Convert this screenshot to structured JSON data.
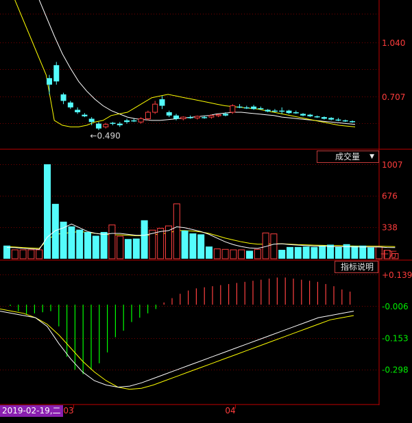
{
  "chart_data": [
    {
      "type": "candlestick",
      "title": "",
      "y_ticks": [
        "1.040",
        "0.707"
      ],
      "tick_values": [
        1.04,
        0.707
      ],
      "annotation": {
        "label": "←0.490",
        "value": 0.49,
        "index": 5
      },
      "ma_short": [
        1.5,
        1.32,
        1.2,
        1.08,
        0.96,
        0.84,
        0.56,
        0.53,
        0.52,
        0.52,
        0.53,
        0.55,
        0.56,
        0.59,
        0.6,
        0.61,
        0.64,
        0.67,
        0.7,
        0.71,
        0.72,
        0.71,
        0.7,
        0.69,
        0.68,
        0.67,
        0.66,
        0.65,
        0.645,
        0.64,
        0.635,
        0.63,
        0.62,
        0.61,
        0.6,
        0.59,
        0.58,
        0.57,
        0.56,
        0.55,
        0.54,
        0.53,
        0.525,
        0.52
      ],
      "ma_long": [
        1.7,
        1.6,
        1.52,
        1.44,
        1.32,
        1.2,
        1.08,
        0.97,
        0.88,
        0.8,
        0.74,
        0.69,
        0.65,
        0.62,
        0.6,
        0.58,
        0.57,
        0.565,
        0.56,
        0.56,
        0.565,
        0.57,
        0.575,
        0.58,
        0.585,
        0.59,
        0.6,
        0.605,
        0.61,
        0.61,
        0.605,
        0.6,
        0.595,
        0.59,
        0.58,
        0.575,
        0.57,
        0.565,
        0.56,
        0.555,
        0.55,
        0.545,
        0.54,
        0.535
      ],
      "candles": [
        {
          "o": 0.78,
          "h": 0.84,
          "l": 0.72,
          "c": 0.82,
          "up": false
        },
        {
          "o": 0.9,
          "h": 0.92,
          "l": 0.78,
          "c": 0.8,
          "up": false
        },
        {
          "o": 0.72,
          "h": 0.73,
          "l": 0.66,
          "c": 0.68,
          "up": false
        },
        {
          "o": 0.67,
          "h": 0.68,
          "l": 0.63,
          "c": 0.64,
          "up": false
        },
        {
          "o": 0.625,
          "h": 0.64,
          "l": 0.6,
          "c": 0.61,
          "up": false
        },
        {
          "o": 0.595,
          "h": 0.605,
          "l": 0.58,
          "c": 0.585,
          "up": false
        },
        {
          "o": 0.57,
          "h": 0.58,
          "l": 0.53,
          "c": 0.55,
          "up": false
        },
        {
          "o": 0.54,
          "h": 0.55,
          "l": 0.5,
          "c": 0.51,
          "up": false
        },
        {
          "o": 0.52,
          "h": 0.545,
          "l": 0.51,
          "c": 0.535,
          "up": true
        },
        {
          "o": 0.54,
          "h": 0.55,
          "l": 0.53,
          "c": 0.545,
          "up": false
        },
        {
          "o": 0.54,
          "h": 0.55,
          "l": 0.52,
          "c": 0.53,
          "up": false
        },
        {
          "o": 0.55,
          "h": 0.57,
          "l": 0.54,
          "c": 0.56,
          "up": false
        },
        {
          "o": 0.56,
          "h": 0.57,
          "l": 0.55,
          "c": 0.555,
          "up": false
        },
        {
          "o": 0.55,
          "h": 0.58,
          "l": 0.54,
          "c": 0.57,
          "up": true
        },
        {
          "o": 0.57,
          "h": 0.62,
          "l": 0.56,
          "c": 0.61,
          "up": true
        },
        {
          "o": 0.61,
          "h": 0.68,
          "l": 0.6,
          "c": 0.66,
          "up": true
        },
        {
          "o": 0.69,
          "h": 0.71,
          "l": 0.63,
          "c": 0.65,
          "up": false
        },
        {
          "o": 0.61,
          "h": 0.62,
          "l": 0.58,
          "c": 0.59,
          "up": false
        },
        {
          "o": 0.59,
          "h": 0.6,
          "l": 0.56,
          "c": 0.57,
          "up": false
        },
        {
          "o": 0.57,
          "h": 0.585,
          "l": 0.56,
          "c": 0.58,
          "up": true
        },
        {
          "o": 0.58,
          "h": 0.59,
          "l": 0.57,
          "c": 0.575,
          "up": false
        },
        {
          "o": 0.575,
          "h": 0.59,
          "l": 0.565,
          "c": 0.585,
          "up": true
        },
        {
          "o": 0.58,
          "h": 0.59,
          "l": 0.57,
          "c": 0.575,
          "up": false
        },
        {
          "o": 0.58,
          "h": 0.595,
          "l": 0.57,
          "c": 0.59,
          "up": true
        },
        {
          "o": 0.59,
          "h": 0.6,
          "l": 0.58,
          "c": 0.595,
          "up": true
        },
        {
          "o": 0.6,
          "h": 0.61,
          "l": 0.585,
          "c": 0.59,
          "up": false
        },
        {
          "o": 0.61,
          "h": 0.66,
          "l": 0.6,
          "c": 0.65,
          "up": true
        },
        {
          "o": 0.645,
          "h": 0.66,
          "l": 0.635,
          "c": 0.64,
          "up": false
        },
        {
          "o": 0.64,
          "h": 0.65,
          "l": 0.63,
          "c": 0.635,
          "up": false
        },
        {
          "o": 0.645,
          "h": 0.655,
          "l": 0.625,
          "c": 0.63,
          "up": false
        },
        {
          "o": 0.635,
          "h": 0.645,
          "l": 0.625,
          "c": 0.63,
          "up": false
        },
        {
          "o": 0.625,
          "h": 0.63,
          "l": 0.61,
          "c": 0.615,
          "up": false
        },
        {
          "o": 0.62,
          "h": 0.63,
          "l": 0.61,
          "c": 0.62,
          "up": false
        },
        {
          "o": 0.62,
          "h": 0.64,
          "l": 0.6,
          "c": 0.615,
          "up": false
        },
        {
          "o": 0.62,
          "h": 0.625,
          "l": 0.6,
          "c": 0.605,
          "up": false
        },
        {
          "o": 0.61,
          "h": 0.62,
          "l": 0.6,
          "c": 0.605,
          "up": false
        },
        {
          "o": 0.6,
          "h": 0.605,
          "l": 0.585,
          "c": 0.59,
          "up": false
        },
        {
          "o": 0.595,
          "h": 0.6,
          "l": 0.58,
          "c": 0.585,
          "up": false
        },
        {
          "o": 0.585,
          "h": 0.59,
          "l": 0.575,
          "c": 0.58,
          "up": false
        },
        {
          "o": 0.58,
          "h": 0.585,
          "l": 0.565,
          "c": 0.57,
          "up": false
        },
        {
          "o": 0.575,
          "h": 0.58,
          "l": 0.56,
          "c": 0.565,
          "up": false
        },
        {
          "o": 0.565,
          "h": 0.575,
          "l": 0.555,
          "c": 0.56,
          "up": false
        },
        {
          "o": 0.56,
          "h": 0.565,
          "l": 0.55,
          "c": 0.555,
          "up": false
        },
        {
          "o": 0.555,
          "h": 0.56,
          "l": 0.545,
          "c": 0.55,
          "up": false
        }
      ]
    },
    {
      "type": "bar",
      "title": "",
      "dropdown_label": "成交量",
      "unit_label": "十万",
      "y_ticks": [
        "1007",
        "676",
        "338"
      ],
      "tick_values": [
        1007,
        676,
        338
      ],
      "values": [
        140,
        95,
        95,
        95,
        95,
        1007,
        585,
        395,
        345,
        310,
        285,
        245,
        285,
        360,
        240,
        210,
        215,
        410,
        305,
        325,
        350,
        585,
        300,
        270,
        260,
        130,
        105,
        100,
        95,
        95,
        85,
        100,
        275,
        265,
        95,
        125,
        125,
        130,
        125,
        140,
        150,
        125,
        155,
        135,
        140,
        120,
        125,
        90,
        55
      ],
      "up": [
        false,
        true,
        true,
        true,
        true,
        false,
        false,
        false,
        false,
        false,
        false,
        false,
        false,
        true,
        true,
        false,
        false,
        false,
        true,
        true,
        true,
        true,
        false,
        false,
        false,
        false,
        true,
        true,
        true,
        true,
        false,
        true,
        true,
        true,
        false,
        false,
        false,
        false,
        false,
        false,
        false,
        false,
        false,
        false,
        false,
        false,
        true,
        true,
        true
      ],
      "ma_a": [
        120,
        118,
        110,
        105,
        100,
        230,
        300,
        330,
        370,
        330,
        290,
        270,
        260,
        270,
        270,
        260,
        250,
        250,
        270,
        290,
        300,
        340,
        330,
        310,
        290,
        260,
        220,
        180,
        150,
        130,
        115,
        110,
        130,
        155,
        160,
        150,
        145,
        140,
        135,
        135,
        130,
        130,
        128,
        126,
        125,
        125,
        125,
        120,
        118
      ],
      "ma_b": [
        130,
        125,
        120,
        115,
        110,
        200,
        260,
        270,
        280,
        290,
        280,
        270,
        260,
        255,
        255,
        250,
        245,
        245,
        255,
        265,
        275,
        300,
        300,
        295,
        285,
        270,
        245,
        220,
        200,
        180,
        165,
        155,
        155,
        160,
        160,
        155,
        150,
        148,
        145,
        143,
        141,
        140,
        138,
        136,
        135,
        134,
        133,
        131,
        129
      ]
    },
    {
      "type": "histogram",
      "title": "",
      "button_label": "指标说明",
      "y_ticks": [
        "+0.139",
        "-0.006",
        "-0.153",
        "-0.298"
      ],
      "tick_values": [
        0.139,
        -0.006,
        -0.153,
        -0.298
      ],
      "values": [
        -0.006,
        -0.03,
        -0.045,
        -0.04,
        -0.035,
        -0.03,
        -0.1,
        -0.24,
        -0.3,
        -0.32,
        -0.3,
        -0.27,
        -0.22,
        -0.15,
        -0.12,
        -0.08,
        -0.06,
        -0.04,
        -0.02,
        0.01,
        0.03,
        0.05,
        0.065,
        0.075,
        0.08,
        0.085,
        0.09,
        0.095,
        0.1,
        0.105,
        0.11,
        0.115,
        0.12,
        0.125,
        0.125,
        0.12,
        0.115,
        0.11,
        0.105,
        0.095,
        0.085,
        0.07,
        0.06
      ],
      "dif": [
        -0.03,
        -0.04,
        -0.05,
        -0.06,
        -0.1,
        -0.18,
        -0.25,
        -0.31,
        -0.35,
        -0.37,
        -0.38,
        -0.375,
        -0.36,
        -0.34,
        -0.32,
        -0.3,
        -0.28,
        -0.26,
        -0.24,
        -0.22,
        -0.2,
        -0.18,
        -0.16,
        -0.14,
        -0.12,
        -0.1,
        -0.08,
        -0.06,
        -0.05,
        -0.04,
        -0.03
      ],
      "dea": [
        -0.02,
        -0.03,
        -0.04,
        -0.06,
        -0.09,
        -0.14,
        -0.2,
        -0.26,
        -0.31,
        -0.35,
        -0.38,
        -0.39,
        -0.385,
        -0.37,
        -0.35,
        -0.33,
        -0.31,
        -0.29,
        -0.27,
        -0.25,
        -0.23,
        -0.21,
        -0.19,
        -0.17,
        -0.15,
        -0.13,
        -0.11,
        -0.09,
        -0.07,
        -0.06,
        -0.05
      ]
    }
  ],
  "x_axis": {
    "labels": [
      {
        "text": "03",
        "index": 8
      },
      {
        "text": "04",
        "index": 28
      }
    ],
    "date_box": "2019-02-19,二"
  },
  "colors": {
    "up": "#ff4040",
    "down": "#54fcfc",
    "ma_white": "#ffffff",
    "ma_yellow": "#ffff00",
    "macd_pos": "#ff4040",
    "macd_neg": "#00ff00",
    "grid": "#7a0000",
    "axis_text": "#ff3c3c",
    "green_text": "#00ee00"
  }
}
